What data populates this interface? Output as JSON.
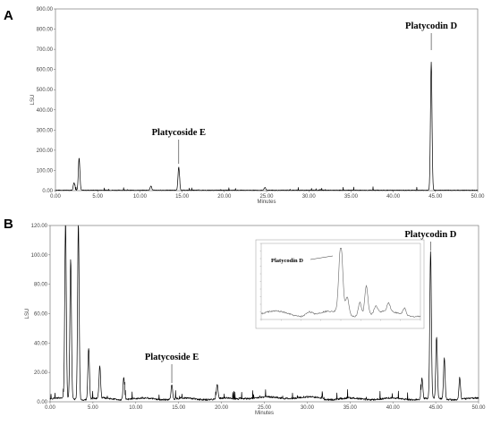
{
  "chart_data": [
    {
      "panel": "A",
      "type": "line",
      "xlabel": "Minutes",
      "ylabel": "LSU",
      "xlim": [
        0,
        50
      ],
      "ylim": [
        0,
        900
      ],
      "x_ticks": [
        "0.00",
        "5.00",
        "10.00",
        "15.00",
        "20.00",
        "25.00",
        "30.00",
        "35.00",
        "40.00",
        "45.00",
        "50.00"
      ],
      "y_ticks": [
        "0.00",
        "100.00",
        "200.00",
        "300.00",
        "400.00",
        "500.00",
        "600.00",
        "700.00",
        "800.00",
        "900.00"
      ],
      "peaks": [
        {
          "x": 2.2,
          "y": 38
        },
        {
          "x": 2.8,
          "y": 160
        },
        {
          "x": 11.3,
          "y": 22
        },
        {
          "x": 14.6,
          "y": 115
        },
        {
          "x": 24.8,
          "y": 14
        },
        {
          "x": 44.5,
          "y": 635
        }
      ],
      "annotations": [
        {
          "label": "Platycoside E",
          "x": 14.6
        },
        {
          "label": "Platycodin D",
          "x": 44.5
        }
      ]
    },
    {
      "panel": "B",
      "type": "line",
      "xlabel": "Minutes",
      "ylabel": "LSU",
      "xlim": [
        0,
        50
      ],
      "ylim": [
        0,
        120
      ],
      "x_ticks": [
        "0.00",
        "5.00",
        "10.00",
        "15.00",
        "20.00",
        "25.00",
        "30.00",
        "35.00",
        "40.00",
        "45.00",
        "50.00"
      ],
      "y_ticks": [
        "0.00",
        "20.00",
        "40.00",
        "60.00",
        "80.00",
        "100.00",
        "120.00"
      ],
      "peaks": [
        {
          "x": 1.8,
          "y": 120
        },
        {
          "x": 2.4,
          "y": 95
        },
        {
          "x": 3.3,
          "y": 120
        },
        {
          "x": 4.5,
          "y": 35
        },
        {
          "x": 5.8,
          "y": 22
        },
        {
          "x": 8.6,
          "y": 15
        },
        {
          "x": 14.2,
          "y": 10
        },
        {
          "x": 19.5,
          "y": 10
        },
        {
          "x": 43.4,
          "y": 14
        },
        {
          "x": 44.4,
          "y": 100
        },
        {
          "x": 45.1,
          "y": 42
        },
        {
          "x": 46.0,
          "y": 28
        },
        {
          "x": 47.8,
          "y": 15
        }
      ],
      "annotations": [
        {
          "label": "Platycoside E",
          "x": 14.2
        },
        {
          "label": "Platycodin D",
          "x": 44.4
        }
      ],
      "inset": {
        "label": "Platycodin D"
      }
    }
  ]
}
